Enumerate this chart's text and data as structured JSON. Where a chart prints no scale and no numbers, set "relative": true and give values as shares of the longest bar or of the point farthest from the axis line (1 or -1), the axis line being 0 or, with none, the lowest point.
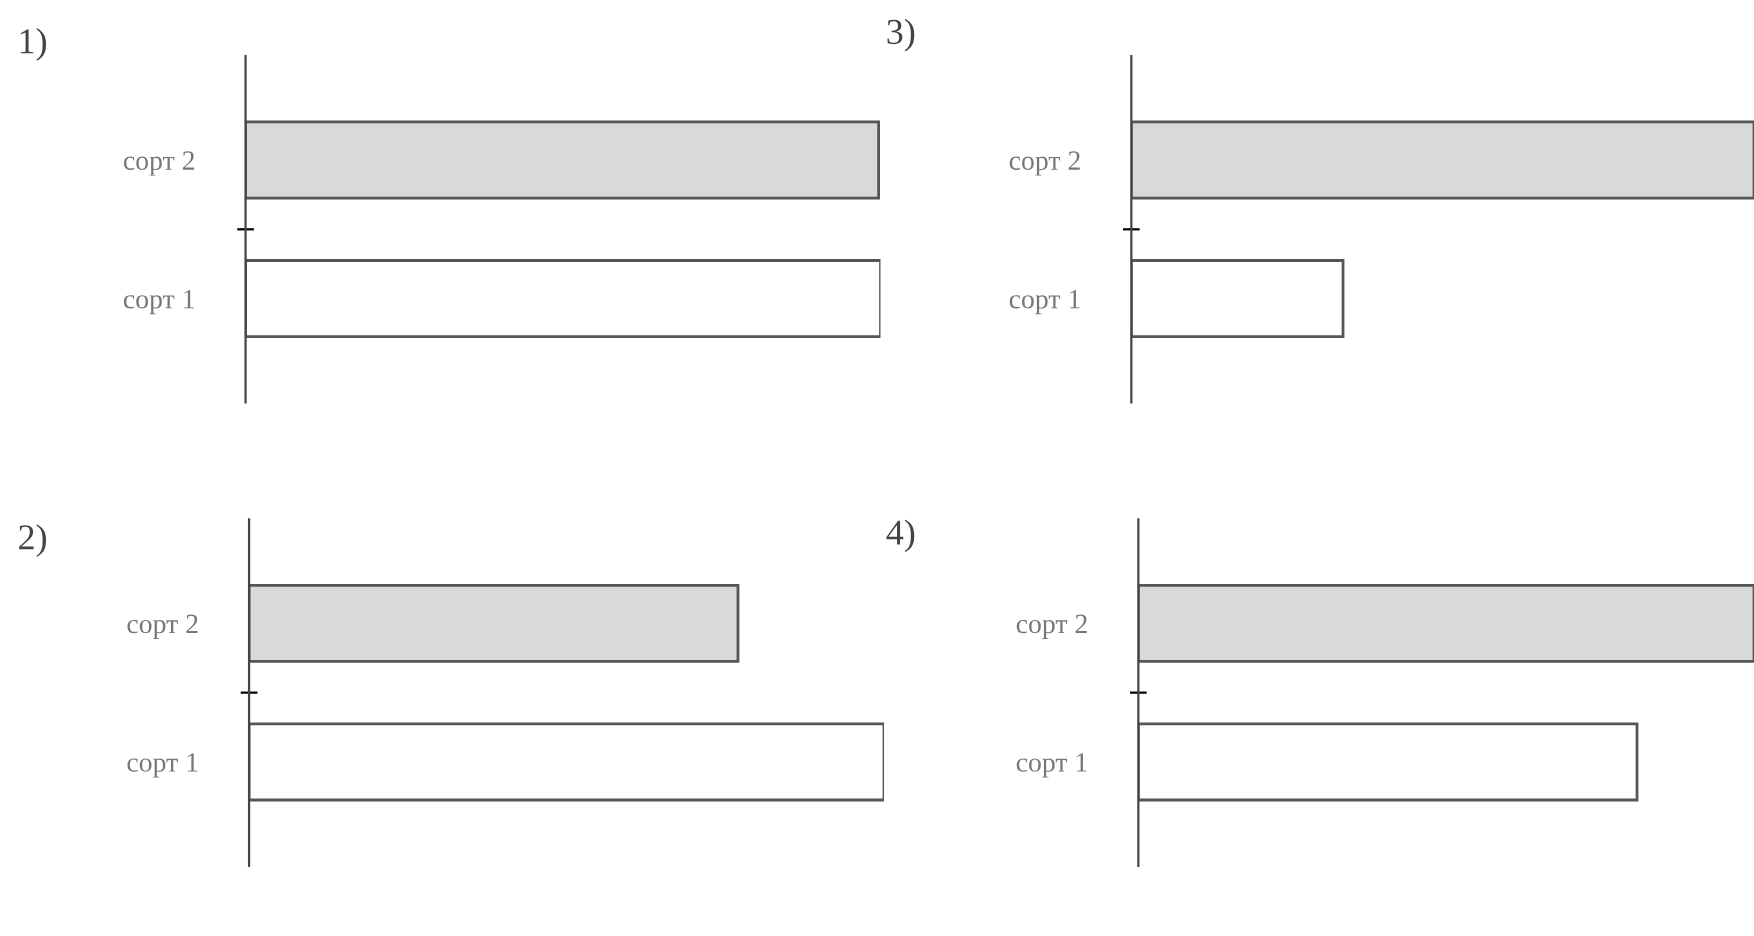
{
  "chart_data": [
    {
      "type": "bar",
      "orientation": "horizontal",
      "relative": true,
      "title": "1)",
      "categories": [
        "сорт 2",
        "сорт 1"
      ],
      "values": [
        0.997,
        1
      ],
      "colors": [
        "#d9d9d9",
        "#ffffff"
      ]
    },
    {
      "type": "bar",
      "orientation": "horizontal",
      "relative": true,
      "title": "3)",
      "categories": [
        "сорт 2",
        "сорт 1"
      ],
      "values": [
        1,
        0.34
      ],
      "colors": [
        "#d9d9d9",
        "#ffffff"
      ]
    },
    {
      "type": "bar",
      "orientation": "horizontal",
      "relative": true,
      "title": "2)",
      "categories": [
        "сорт 2",
        "сорт 1"
      ],
      "values": [
        0.77,
        1
      ],
      "colors": [
        "#d9d9d9",
        "#ffffff"
      ]
    },
    {
      "type": "bar",
      "orientation": "horizontal",
      "relative": true,
      "title": "4)",
      "categories": [
        "сорт 2",
        "сорт 1"
      ],
      "values": [
        1,
        0.81
      ],
      "colors": [
        "#d9d9d9",
        "#ffffff"
      ]
    }
  ]
}
